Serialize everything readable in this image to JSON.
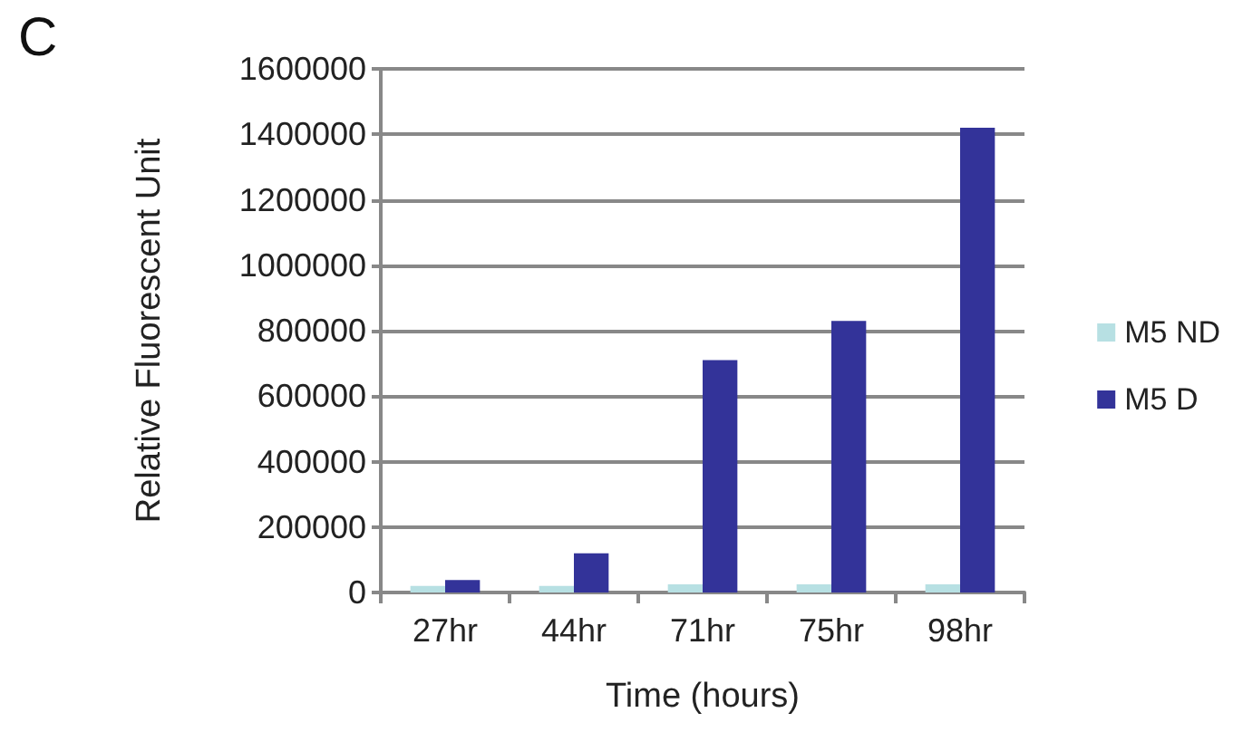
{
  "chart_data": {
    "type": "bar",
    "xlabel": "Time (hours)",
    "ylabel": "Relative Fluorescent Unit",
    "annotations": [
      "C"
    ],
    "categories": [
      "27hr",
      "44hr",
      "71hr",
      "75hr",
      "98hr"
    ],
    "series": [
      {
        "name": "M5 ND",
        "color": "#b7e0e3",
        "values": [
          20000,
          20000,
          25000,
          25000,
          25000
        ]
      },
      {
        "name": "M5 D",
        "color": "#333399",
        "values": [
          38000,
          120000,
          710000,
          830000,
          1420000
        ]
      }
    ],
    "ylim": [
      0,
      1600000
    ],
    "yticks": [
      0,
      200000,
      400000,
      600000,
      800000,
      1000000,
      1200000,
      1400000,
      1600000
    ],
    "grid": "y",
    "legend": "right"
  }
}
